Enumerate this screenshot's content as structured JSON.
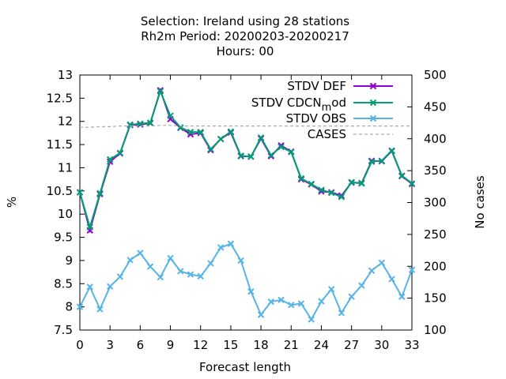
{
  "chart_data": {
    "type": "line",
    "title_lines": [
      "Selection: Ireland using    28 stations",
      "Rh2m   Period: 20200203-20200217",
      "Hours:  00"
    ],
    "xlabel": "Forecast length",
    "ylabel": "%",
    "y2label": "No cases",
    "xlim": [
      0,
      33
    ],
    "ylim": [
      7.5,
      13
    ],
    "y2lim": [
      100,
      500
    ],
    "x_ticks": [
      0,
      3,
      6,
      9,
      12,
      15,
      18,
      21,
      24,
      27,
      30,
      33
    ],
    "y_ticks": [
      7.5,
      8,
      8.5,
      9,
      9.5,
      10,
      10.5,
      11,
      11.5,
      12,
      12.5,
      13
    ],
    "y_tick_labels": [
      "7.5",
      "8",
      "8.5",
      "9",
      "9.5",
      "10",
      "10.5",
      "11",
      "11.5",
      "12",
      "12.5",
      "13"
    ],
    "y2_ticks": [
      100,
      150,
      200,
      250,
      300,
      350,
      400,
      450,
      500
    ],
    "grid": false,
    "legend_position": "top-right",
    "x": [
      0,
      1,
      2,
      3,
      4,
      5,
      6,
      7,
      8,
      9,
      10,
      11,
      12,
      13,
      14,
      15,
      16,
      17,
      18,
      19,
      20,
      21,
      22,
      23,
      24,
      25,
      26,
      27,
      28,
      29,
      30,
      31,
      32,
      33
    ],
    "series": [
      {
        "name": "STDV DEF",
        "color": "#9400d3",
        "axis": "y1",
        "marker": "x",
        "values": [
          10.47,
          9.65,
          10.43,
          11.13,
          11.31,
          11.92,
          11.93,
          11.96,
          12.67,
          12.05,
          11.86,
          11.72,
          11.75,
          11.38,
          11.62,
          11.76,
          11.25,
          11.24,
          11.63,
          11.25,
          11.48,
          11.35,
          10.75,
          10.64,
          10.49,
          10.47,
          10.4,
          10.68,
          10.67,
          11.15,
          11.14,
          11.36,
          10.82,
          10.65
        ]
      },
      {
        "name": "STDV CDCN_mod",
        "label_main": "STDV CDCN",
        "label_sub": "m",
        "label_tail": "od",
        "color": "#009e73",
        "axis": "y1",
        "marker": "x",
        "values": [
          10.47,
          9.72,
          10.45,
          11.18,
          11.32,
          11.93,
          11.95,
          11.97,
          12.65,
          12.12,
          11.87,
          11.77,
          11.77,
          11.4,
          11.62,
          11.78,
          11.26,
          11.24,
          11.65,
          11.27,
          11.45,
          11.34,
          10.77,
          10.65,
          10.52,
          10.46,
          10.37,
          10.69,
          10.66,
          11.13,
          11.15,
          11.37,
          10.83,
          10.66
        ]
      },
      {
        "name": "STDV OBS",
        "color": "#56b4e9",
        "axis": "y1",
        "marker": "x",
        "values": [
          8.0,
          8.43,
          7.95,
          8.44,
          8.65,
          9.01,
          9.16,
          8.87,
          8.64,
          9.05,
          8.77,
          8.7,
          8.66,
          8.94,
          9.28,
          9.36,
          9.0,
          8.33,
          7.83,
          8.11,
          8.15,
          8.04,
          8.07,
          7.73,
          8.12,
          8.38,
          7.87,
          8.22,
          8.46,
          8.78,
          8.95,
          8.6,
          8.22,
          8.8
        ]
      },
      {
        "name": "CASES",
        "color": "#aaaaaa",
        "axis": "y2",
        "dashed": true,
        "values": [
          418,
          418,
          419,
          419,
          420,
          420,
          420,
          420,
          421,
          421,
          420,
          420,
          420,
          420,
          420,
          420,
          420,
          420,
          420,
          420,
          420,
          420,
          420,
          420,
          420,
          420,
          420,
          420,
          420,
          420,
          420,
          420,
          420,
          420
        ]
      }
    ]
  }
}
